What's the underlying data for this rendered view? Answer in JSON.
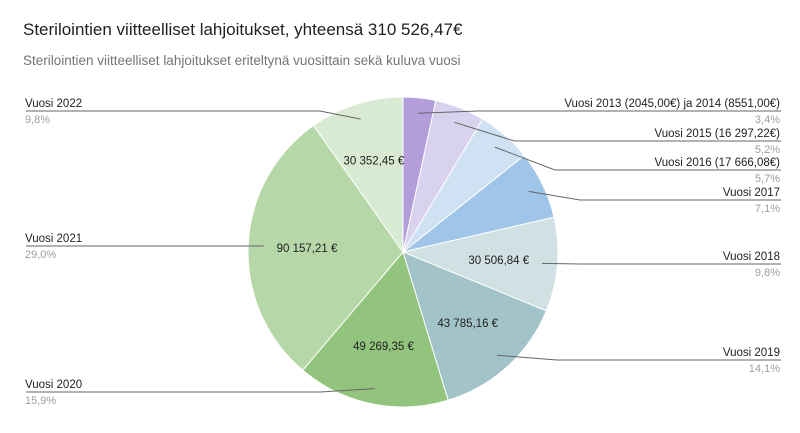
{
  "chart_data": {
    "type": "pie",
    "title": "Sterilointien viitteelliset lahjoitukset, yhteensä 310 526,47€",
    "subtitle": "Sterilointien viitteelliset lahjoitukset eriteltynä vuosittain sekä kuluva vuosi",
    "slices": [
      {
        "label": "Vuosi 2013 (2045,00€) ja 2014 (8551,00€)",
        "percent_label": "3,4%",
        "percent": 3.4,
        "value_label": "",
        "color": "#b39ddb",
        "side": "right"
      },
      {
        "label": "Vuosi 2015 (16 297,22€)",
        "percent_label": "5,2%",
        "percent": 5.2,
        "value_label": "",
        "color": "#d9d2ee",
        "side": "right"
      },
      {
        "label": "Vuosi 2016 (17 666,08€)",
        "percent_label": "5,7%",
        "percent": 5.7,
        "value_label": "",
        "color": "#cfe2f3",
        "side": "right"
      },
      {
        "label": "Vuosi 2017",
        "percent_label": "7,1%",
        "percent": 7.1,
        "value_label": "",
        "color": "#9fc5e8",
        "side": "right"
      },
      {
        "label": "Vuosi 2018",
        "percent_label": "9,8%",
        "percent": 9.8,
        "value_label": "30 506,84 €",
        "color": "#d0e0e3",
        "side": "right"
      },
      {
        "label": "Vuosi 2019",
        "percent_label": "14,1%",
        "percent": 14.1,
        "value_label": "43 785,16 €",
        "color": "#a2c4c9",
        "side": "right"
      },
      {
        "label": "Vuosi 2020",
        "percent_label": "15,9%",
        "percent": 15.9,
        "value_label": "49 269,35 €",
        "color": "#93c47d",
        "side": "left"
      },
      {
        "label": "Vuosi 2021",
        "percent_label": "29,0%",
        "percent": 29.0,
        "value_label": "90 157,21 €",
        "color": "#b6d7a8",
        "side": "left"
      },
      {
        "label": "Vuosi 2022",
        "percent_label": "9,8%",
        "percent": 9.8,
        "value_label": "30 352,45 €",
        "color": "#d9ead3",
        "side": "left"
      }
    ]
  }
}
